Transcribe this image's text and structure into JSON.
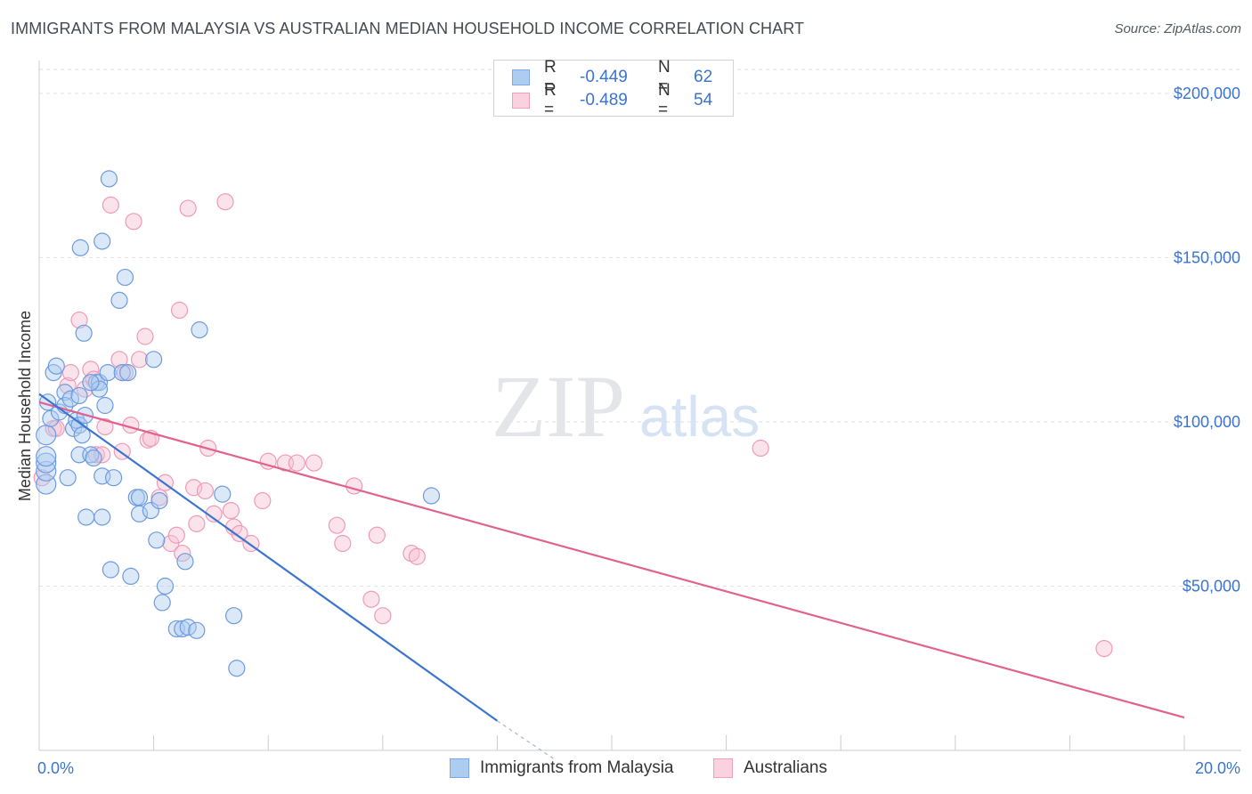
{
  "title": "IMMIGRANTS FROM MALAYSIA VS AUSTRALIAN MEDIAN HOUSEHOLD INCOME CORRELATION CHART",
  "source": "Source: ZipAtlas.com",
  "watermark": {
    "zip": "ZIP",
    "atlas": "atlas"
  },
  "legend": {
    "rows": [
      {
        "r_label": "R =",
        "r_value": "-0.449",
        "n_label": "N =",
        "n_value": "62",
        "color": "#7fa8e6"
      },
      {
        "r_label": "R =",
        "r_value": "-0.489",
        "n_label": "N =",
        "n_value": "54",
        "color": "#f0a0bc"
      }
    ]
  },
  "bottom_legend": {
    "series1": "Immigrants from Malaysia",
    "series2": "Australians"
  },
  "chart_data": {
    "type": "scatter",
    "title": "IMMIGRANTS FROM MALAYSIA VS AUSTRALIAN MEDIAN HOUSEHOLD INCOME CORRELATION CHART",
    "xlabel": "",
    "ylabel": "Median Household Income",
    "xlim": [
      0,
      20
    ],
    "ylim": [
      0,
      210000
    ],
    "x_tick_labels": [
      "0.0%",
      "20.0%"
    ],
    "y_ticks": [
      50000,
      100000,
      150000,
      200000
    ],
    "y_tick_labels": [
      "$50,000",
      "$100,000",
      "$150,000",
      "$200,000"
    ],
    "grid": true,
    "colors": {
      "blue": "#3b74d1",
      "blue_fill": "#aecbf0",
      "pink": "#e0628f",
      "pink_fill": "#f6c1d3"
    },
    "series": [
      {
        "name": "Immigrants from Malaysia",
        "color": "#3b74d1",
        "trend": {
          "x0": 0.0,
          "y0": 108500,
          "x1": 8.0,
          "y1": 9000,
          "dash_to_x": 9.0
        },
        "points": [
          [
            0.12,
            81000
          ],
          [
            0.12,
            85000
          ],
          [
            0.12,
            87500
          ],
          [
            0.12,
            89500
          ],
          [
            0.12,
            96000
          ],
          [
            0.15,
            106000
          ],
          [
            0.2,
            101000
          ],
          [
            0.25,
            115000
          ],
          [
            0.3,
            117000
          ],
          [
            0.35,
            103000
          ],
          [
            0.45,
            109000
          ],
          [
            0.45,
            105000
          ],
          [
            0.5,
            83000
          ],
          [
            0.55,
            107000
          ],
          [
            0.6,
            98000
          ],
          [
            0.65,
            100500
          ],
          [
            0.7,
            90000
          ],
          [
            0.7,
            108000
          ],
          [
            0.7,
            99000
          ],
          [
            0.75,
            96000
          ],
          [
            0.8,
            102000
          ],
          [
            0.72,
            153000
          ],
          [
            0.78,
            127000
          ],
          [
            0.82,
            71000
          ],
          [
            0.9,
            90000
          ],
          [
            0.95,
            89000
          ],
          [
            1.0,
            112000
          ],
          [
            1.05,
            112000
          ],
          [
            1.05,
            110000
          ],
          [
            1.1,
            71000
          ],
          [
            1.1,
            83500
          ],
          [
            1.1,
            155000
          ],
          [
            1.15,
            105000
          ],
          [
            1.2,
            115000
          ],
          [
            1.22,
            174000
          ],
          [
            1.25,
            55000
          ],
          [
            1.3,
            83000
          ],
          [
            1.4,
            137000
          ],
          [
            1.45,
            115000
          ],
          [
            1.5,
            144000
          ],
          [
            1.55,
            115000
          ],
          [
            1.6,
            53000
          ],
          [
            1.7,
            77000
          ],
          [
            1.75,
            72000
          ],
          [
            1.75,
            77000
          ],
          [
            1.95,
            73000
          ],
          [
            2.0,
            119000
          ],
          [
            2.05,
            64000
          ],
          [
            2.1,
            76000
          ],
          [
            2.15,
            45000
          ],
          [
            2.2,
            50000
          ],
          [
            2.4,
            37000
          ],
          [
            2.5,
            37000
          ],
          [
            2.55,
            57500
          ],
          [
            2.6,
            37500
          ],
          [
            2.75,
            36500
          ],
          [
            2.8,
            128000
          ],
          [
            3.2,
            78000
          ],
          [
            3.4,
            41000
          ],
          [
            3.45,
            25000
          ],
          [
            6.85,
            77500
          ],
          [
            0.9,
            112000
          ]
        ]
      },
      {
        "name": "Australians",
        "color": "#e0628f",
        "trend": {
          "x0": 0.0,
          "y0": 106000,
          "x1": 20.0,
          "y1": 10000
        },
        "points": [
          [
            0.05,
            83000
          ],
          [
            0.25,
            98000
          ],
          [
            0.5,
            111000
          ],
          [
            0.55,
            115000
          ],
          [
            0.7,
            131000
          ],
          [
            0.8,
            110000
          ],
          [
            0.9,
            116000
          ],
          [
            0.95,
            113000
          ],
          [
            1.0,
            90000
          ],
          [
            1.1,
            90000
          ],
          [
            1.15,
            98500
          ],
          [
            1.25,
            166000
          ],
          [
            1.4,
            119000
          ],
          [
            1.45,
            91000
          ],
          [
            1.5,
            115000
          ],
          [
            1.6,
            99000
          ],
          [
            1.65,
            161000
          ],
          [
            1.75,
            119000
          ],
          [
            1.85,
            126000
          ],
          [
            1.9,
            94500
          ],
          [
            1.95,
            95000
          ],
          [
            2.1,
            77000
          ],
          [
            2.2,
            81500
          ],
          [
            2.3,
            63000
          ],
          [
            2.4,
            65500
          ],
          [
            2.45,
            134000
          ],
          [
            2.5,
            60000
          ],
          [
            2.6,
            165000
          ],
          [
            2.7,
            80000
          ],
          [
            2.75,
            69000
          ],
          [
            2.9,
            79000
          ],
          [
            2.95,
            92000
          ],
          [
            3.05,
            72000
          ],
          [
            3.25,
            167000
          ],
          [
            3.35,
            73000
          ],
          [
            3.4,
            68000
          ],
          [
            3.5,
            66000
          ],
          [
            3.7,
            63000
          ],
          [
            3.9,
            76000
          ],
          [
            4.0,
            88000
          ],
          [
            4.3,
            87500
          ],
          [
            4.5,
            87500
          ],
          [
            4.8,
            87500
          ],
          [
            5.2,
            68500
          ],
          [
            5.3,
            63000
          ],
          [
            5.5,
            80500
          ],
          [
            5.8,
            46000
          ],
          [
            5.9,
            65500
          ],
          [
            6.0,
            41000
          ],
          [
            6.5,
            60000
          ],
          [
            6.6,
            59000
          ],
          [
            12.6,
            92000
          ],
          [
            18.6,
            31000
          ],
          [
            0.3,
            98000
          ]
        ]
      }
    ]
  }
}
